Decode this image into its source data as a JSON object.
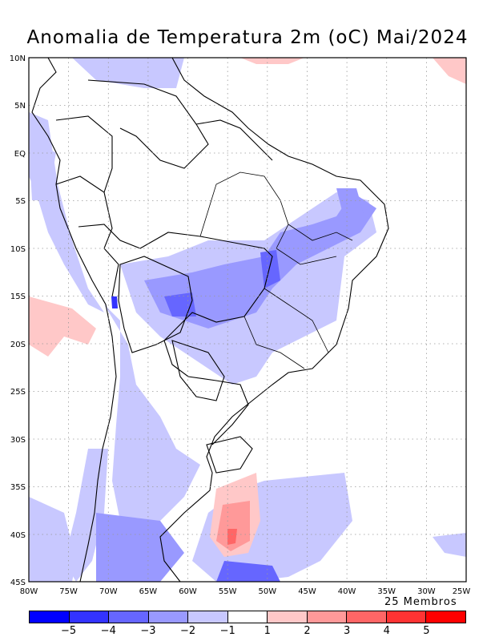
{
  "title": "Anomalia de Temperatura 2m (oC) Mai/2024",
  "members_label": "25 Membros",
  "lat_labels": [
    "10N",
    "5N",
    "EQ",
    "5S",
    "10S",
    "15S",
    "20S",
    "25S",
    "30S",
    "35S",
    "40S",
    "45S"
  ],
  "lon_labels": [
    "80W",
    "75W",
    "70W",
    "65W",
    "60W",
    "55W",
    "50W",
    "45W",
    "40W",
    "35W",
    "30W",
    "25W"
  ],
  "colorbar": {
    "colors": [
      "#0000ff",
      "#3333ff",
      "#6666ff",
      "#9999ff",
      "#c8c8ff",
      "#ffffff",
      "#ffc8c8",
      "#ff9999",
      "#ff6666",
      "#ff3333",
      "#ff0000"
    ],
    "labels": [
      "−5",
      "−4",
      "−3",
      "−2",
      "−1",
      "1",
      "2",
      "3",
      "4",
      "5"
    ]
  },
  "colors": {
    "land_border": "#000000",
    "grid": "#999999"
  }
}
